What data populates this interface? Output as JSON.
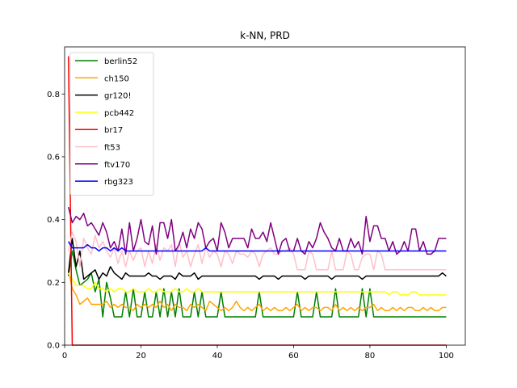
{
  "chart_data": {
    "type": "line",
    "title": "k-NN, PRD",
    "xlabel": "",
    "ylabel": "",
    "xlim": [
      0,
      105
    ],
    "ylim": [
      0,
      0.95
    ],
    "xticks": [
      0,
      20,
      40,
      60,
      80,
      100
    ],
    "xtick_labels": [
      "0",
      "20",
      "40",
      "60",
      "80",
      "100"
    ],
    "yticks": [
      0.0,
      0.2,
      0.4,
      0.6,
      0.8
    ],
    "ytick_labels": [
      "0.0",
      "0.2",
      "0.4",
      "0.6",
      "0.8"
    ],
    "grid": false,
    "legend_position": "top-left",
    "x": [
      1,
      2,
      3,
      4,
      5,
      6,
      7,
      8,
      9,
      10,
      11,
      12,
      13,
      14,
      15,
      16,
      17,
      18,
      19,
      20,
      21,
      22,
      23,
      24,
      25,
      26,
      27,
      28,
      29,
      30,
      31,
      32,
      33,
      34,
      35,
      36,
      37,
      38,
      39,
      40,
      41,
      42,
      43,
      44,
      45,
      46,
      47,
      48,
      49,
      50,
      51,
      52,
      53,
      54,
      55,
      56,
      57,
      58,
      59,
      60,
      61,
      62,
      63,
      64,
      65,
      66,
      67,
      68,
      69,
      70,
      71,
      72,
      73,
      74,
      75,
      76,
      77,
      78,
      79,
      80,
      81,
      82,
      83,
      84,
      85,
      86,
      87,
      88,
      89,
      90,
      91,
      92,
      93,
      94,
      95,
      96,
      97,
      98,
      99,
      100
    ],
    "series": [
      {
        "name": "berlin52",
        "color": "#008000",
        "values": [
          0.22,
          0.3,
          0.24,
          0.19,
          0.2,
          0.21,
          0.23,
          0.17,
          0.21,
          0.09,
          0.2,
          0.15,
          0.09,
          0.09,
          0.09,
          0.17,
          0.09,
          0.18,
          0.09,
          0.09,
          0.17,
          0.09,
          0.09,
          0.17,
          0.09,
          0.18,
          0.09,
          0.17,
          0.09,
          0.18,
          0.09,
          0.09,
          0.09,
          0.17,
          0.09,
          0.17,
          0.09,
          0.09,
          0.09,
          0.09,
          0.17,
          0.09,
          0.09,
          0.09,
          0.09,
          0.09,
          0.09,
          0.09,
          0.09,
          0.09,
          0.17,
          0.09,
          0.09,
          0.09,
          0.09,
          0.09,
          0.09,
          0.09,
          0.09,
          0.09,
          0.17,
          0.09,
          0.09,
          0.09,
          0.09,
          0.17,
          0.09,
          0.09,
          0.09,
          0.09,
          0.18,
          0.09,
          0.09,
          0.09,
          0.09,
          0.09,
          0.09,
          0.18,
          0.09,
          0.18,
          0.09,
          0.09,
          0.09,
          0.09,
          0.09,
          0.09,
          0.09,
          0.09,
          0.09,
          0.09,
          0.09,
          0.09,
          0.09,
          0.09,
          0.09,
          0.09,
          0.09,
          0.09,
          0.09,
          0.09
        ]
      },
      {
        "name": "ch150",
        "color": "#ffa500",
        "values": [
          0.24,
          0.18,
          0.16,
          0.13,
          0.14,
          0.15,
          0.13,
          0.13,
          0.13,
          0.13,
          0.14,
          0.12,
          0.13,
          0.12,
          0.13,
          0.12,
          0.12,
          0.11,
          0.13,
          0.12,
          0.13,
          0.12,
          0.13,
          0.12,
          0.14,
          0.12,
          0.13,
          0.11,
          0.13,
          0.12,
          0.12,
          0.11,
          0.13,
          0.12,
          0.13,
          0.12,
          0.11,
          0.14,
          0.13,
          0.12,
          0.11,
          0.12,
          0.11,
          0.12,
          0.14,
          0.12,
          0.11,
          0.12,
          0.11,
          0.12,
          0.13,
          0.11,
          0.12,
          0.11,
          0.12,
          0.11,
          0.11,
          0.12,
          0.11,
          0.12,
          0.13,
          0.11,
          0.12,
          0.11,
          0.12,
          0.12,
          0.11,
          0.12,
          0.12,
          0.11,
          0.13,
          0.11,
          0.12,
          0.11,
          0.12,
          0.11,
          0.12,
          0.11,
          0.12,
          0.12,
          0.13,
          0.11,
          0.12,
          0.11,
          0.11,
          0.12,
          0.11,
          0.12,
          0.11,
          0.12,
          0.12,
          0.11,
          0.11,
          0.12,
          0.11,
          0.12,
          0.11,
          0.11,
          0.12,
          0.12
        ]
      },
      {
        "name": "gr120!",
        "color": "#000000",
        "values": [
          0.23,
          0.34,
          0.25,
          0.3,
          0.21,
          0.22,
          0.23,
          0.24,
          0.21,
          0.23,
          0.22,
          0.25,
          0.23,
          0.22,
          0.21,
          0.23,
          0.22,
          0.22,
          0.22,
          0.22,
          0.22,
          0.23,
          0.22,
          0.22,
          0.21,
          0.22,
          0.22,
          0.22,
          0.21,
          0.23,
          0.22,
          0.22,
          0.22,
          0.23,
          0.21,
          0.22,
          0.22,
          0.22,
          0.22,
          0.22,
          0.22,
          0.22,
          0.22,
          0.22,
          0.22,
          0.22,
          0.22,
          0.22,
          0.22,
          0.22,
          0.21,
          0.22,
          0.22,
          0.22,
          0.22,
          0.21,
          0.22,
          0.22,
          0.22,
          0.22,
          0.22,
          0.22,
          0.21,
          0.22,
          0.22,
          0.22,
          0.22,
          0.22,
          0.22,
          0.21,
          0.22,
          0.22,
          0.22,
          0.22,
          0.22,
          0.22,
          0.22,
          0.21,
          0.22,
          0.22,
          0.22,
          0.22,
          0.22,
          0.22,
          0.22,
          0.22,
          0.22,
          0.22,
          0.22,
          0.22,
          0.22,
          0.22,
          0.22,
          0.22,
          0.22,
          0.22,
          0.22,
          0.22,
          0.23,
          0.22
        ]
      },
      {
        "name": "pcb442",
        "color": "#ffff00",
        "values": [
          0.23,
          0.21,
          0.19,
          0.19,
          0.19,
          0.18,
          0.18,
          0.2,
          0.18,
          0.18,
          0.17,
          0.18,
          0.17,
          0.18,
          0.18,
          0.17,
          0.17,
          0.18,
          0.17,
          0.17,
          0.17,
          0.18,
          0.17,
          0.17,
          0.18,
          0.17,
          0.17,
          0.17,
          0.18,
          0.17,
          0.17,
          0.18,
          0.17,
          0.17,
          0.18,
          0.17,
          0.17,
          0.17,
          0.17,
          0.17,
          0.17,
          0.17,
          0.17,
          0.17,
          0.17,
          0.17,
          0.17,
          0.17,
          0.17,
          0.17,
          0.17,
          0.17,
          0.17,
          0.17,
          0.17,
          0.17,
          0.17,
          0.17,
          0.17,
          0.17,
          0.17,
          0.17,
          0.17,
          0.17,
          0.17,
          0.17,
          0.17,
          0.17,
          0.17,
          0.17,
          0.17,
          0.17,
          0.17,
          0.17,
          0.17,
          0.17,
          0.17,
          0.17,
          0.17,
          0.17,
          0.17,
          0.17,
          0.17,
          0.17,
          0.16,
          0.17,
          0.17,
          0.16,
          0.16,
          0.16,
          0.17,
          0.17,
          0.16,
          0.16,
          0.16,
          0.16,
          0.16,
          0.16,
          0.16,
          0.16
        ]
      },
      {
        "name": "br17",
        "color": "#ff0000",
        "values": [
          0.92,
          0.0,
          0.0,
          0.0,
          0.0,
          0.0,
          0.0,
          0.0,
          0.0,
          0.0,
          0.0,
          0.0,
          0.0,
          0.0,
          0.0,
          0.0,
          0.0,
          0.0,
          0.0,
          0.0,
          0.0,
          0.0,
          0.0,
          0.0,
          0.0,
          0.0,
          0.0,
          0.0,
          0.0,
          0.0,
          0.0,
          0.0,
          0.0,
          0.0,
          0.0,
          0.0,
          0.0,
          0.0,
          0.0,
          0.0,
          0.0,
          0.0,
          0.0,
          0.0,
          0.0,
          0.0,
          0.0,
          0.0,
          0.0,
          0.0,
          0.0,
          0.0,
          0.0,
          0.0,
          0.0,
          0.0,
          0.0,
          0.0,
          0.0,
          0.0,
          0.0,
          0.0,
          0.0,
          0.0,
          0.0,
          0.0,
          0.0,
          0.0,
          0.0,
          0.0,
          0.0,
          0.0,
          0.0,
          0.0,
          0.0,
          0.0,
          0.0,
          0.0,
          0.0,
          0.0,
          0.0,
          0.0,
          0.0,
          0.0,
          0.0,
          0.0,
          0.0,
          0.0,
          0.0,
          0.0,
          0.0,
          0.0,
          0.0,
          0.0,
          0.0,
          0.0,
          0.0,
          0.0,
          0.0,
          0.0
        ]
      },
      {
        "name": "ft53",
        "color": "#ffc0cb",
        "values": [
          0.3,
          0.36,
          0.33,
          0.25,
          0.34,
          0.31,
          0.29,
          0.35,
          0.31,
          0.33,
          0.3,
          0.28,
          0.31,
          0.26,
          0.3,
          0.25,
          0.3,
          0.27,
          0.3,
          0.31,
          0.25,
          0.3,
          0.26,
          0.32,
          0.27,
          0.31,
          0.3,
          0.32,
          0.25,
          0.33,
          0.28,
          0.3,
          0.25,
          0.29,
          0.32,
          0.26,
          0.31,
          0.28,
          0.3,
          0.29,
          0.25,
          0.3,
          0.29,
          0.26,
          0.3,
          0.29,
          0.29,
          0.28,
          0.3,
          0.29,
          0.25,
          0.29,
          0.3,
          0.31,
          0.29,
          0.29,
          0.3,
          0.3,
          0.31,
          0.29,
          0.24,
          0.24,
          0.24,
          0.3,
          0.29,
          0.24,
          0.24,
          0.24,
          0.24,
          0.3,
          0.24,
          0.24,
          0.24,
          0.3,
          0.29,
          0.24,
          0.24,
          0.28,
          0.29,
          0.29,
          0.24,
          0.3,
          0.29,
          0.24,
          0.24,
          0.24,
          0.24,
          0.24,
          0.24,
          0.24,
          0.24,
          0.24,
          0.24,
          0.24,
          0.24,
          0.24,
          0.24,
          0.24,
          0.24,
          0.24
        ]
      },
      {
        "name": "ftv170",
        "color": "#800080",
        "values": [
          0.44,
          0.39,
          0.41,
          0.4,
          0.42,
          0.38,
          0.39,
          0.37,
          0.35,
          0.39,
          0.36,
          0.31,
          0.33,
          0.3,
          0.37,
          0.29,
          0.39,
          0.3,
          0.34,
          0.4,
          0.33,
          0.32,
          0.38,
          0.29,
          0.39,
          0.39,
          0.34,
          0.4,
          0.3,
          0.32,
          0.36,
          0.31,
          0.37,
          0.34,
          0.39,
          0.37,
          0.31,
          0.33,
          0.34,
          0.3,
          0.39,
          0.36,
          0.31,
          0.34,
          0.34,
          0.34,
          0.34,
          0.31,
          0.37,
          0.34,
          0.34,
          0.36,
          0.33,
          0.39,
          0.34,
          0.29,
          0.33,
          0.34,
          0.3,
          0.3,
          0.34,
          0.3,
          0.29,
          0.33,
          0.31,
          0.34,
          0.39,
          0.36,
          0.34,
          0.31,
          0.3,
          0.34,
          0.3,
          0.3,
          0.34,
          0.31,
          0.33,
          0.29,
          0.41,
          0.33,
          0.38,
          0.38,
          0.34,
          0.34,
          0.3,
          0.33,
          0.29,
          0.3,
          0.33,
          0.3,
          0.37,
          0.37,
          0.3,
          0.33,
          0.29,
          0.29,
          0.3,
          0.34,
          0.34,
          0.34
        ]
      },
      {
        "name": "rbg323",
        "color": "#0000ff",
        "values": [
          0.33,
          0.31,
          0.31,
          0.31,
          0.31,
          0.32,
          0.31,
          0.31,
          0.3,
          0.31,
          0.31,
          0.3,
          0.31,
          0.3,
          0.31,
          0.3,
          0.3,
          0.3,
          0.3,
          0.3,
          0.3,
          0.3,
          0.3,
          0.3,
          0.3,
          0.3,
          0.3,
          0.3,
          0.3,
          0.3,
          0.3,
          0.3,
          0.3,
          0.3,
          0.3,
          0.3,
          0.31,
          0.3,
          0.3,
          0.3,
          0.3,
          0.3,
          0.3,
          0.3,
          0.3,
          0.3,
          0.3,
          0.3,
          0.3,
          0.3,
          0.3,
          0.3,
          0.3,
          0.3,
          0.3,
          0.3,
          0.3,
          0.3,
          0.3,
          0.3,
          0.3,
          0.3,
          0.3,
          0.3,
          0.3,
          0.3,
          0.3,
          0.3,
          0.3,
          0.3,
          0.3,
          0.3,
          0.3,
          0.3,
          0.3,
          0.3,
          0.3,
          0.3,
          0.3,
          0.3,
          0.3,
          0.3,
          0.3,
          0.3,
          0.3,
          0.3,
          0.3,
          0.3,
          0.3,
          0.3,
          0.3,
          0.3,
          0.3,
          0.3,
          0.3,
          0.3,
          0.3,
          0.3,
          0.3,
          0.3
        ]
      }
    ]
  }
}
